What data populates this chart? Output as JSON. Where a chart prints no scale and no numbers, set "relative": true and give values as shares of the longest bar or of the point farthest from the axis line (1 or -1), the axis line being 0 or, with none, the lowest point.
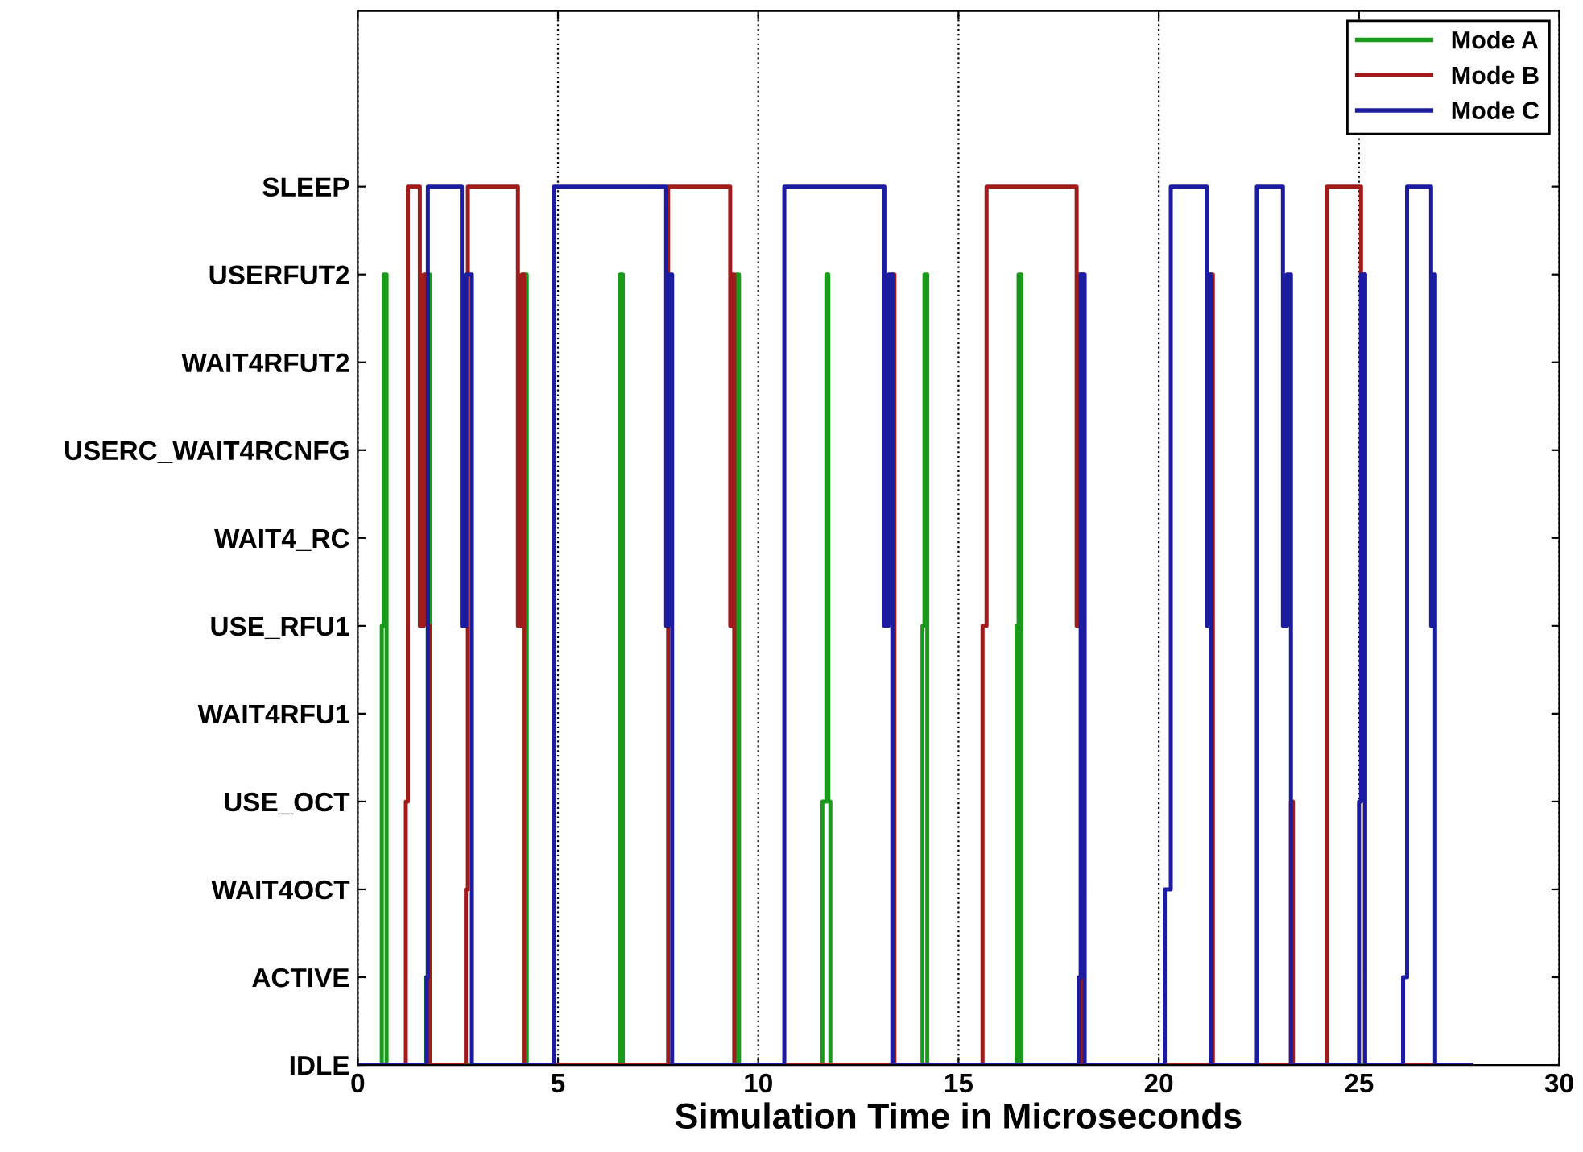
{
  "chart_data": {
    "type": "step",
    "relative": true,
    "xlabel": "Simulation Time in Microseconds",
    "xlim": [
      0,
      30
    ],
    "xticks": [
      0,
      5,
      10,
      15,
      20,
      25,
      30
    ],
    "y_categories": [
      "SLEEP",
      "USERFUT2",
      "WAIT4RFUT2",
      "USERC_WAIT4RCNFG",
      "WAIT4_RC",
      "USE_RFU1",
      "WAIT4RFU1",
      "USE_OCT",
      "WAIT4OCT",
      "ACTIVE",
      "IDLE"
    ],
    "grid": "x",
    "legend": "top right",
    "series": [
      {
        "name": "Mode A",
        "color": "#1a9a1a",
        "x": [
          0,
          0.6,
          0.65,
          0.72,
          1.7,
          1.75,
          1.8,
          4.15,
          4.22,
          6.55,
          6.62,
          9.45,
          9.52,
          11.6,
          11.7,
          11.75,
          11.8,
          14.1,
          14.15,
          14.22,
          16.45,
          16.5,
          16.57,
          27.8
        ],
        "values": [
          0,
          0.5,
          0.9,
          0,
          0.1,
          0.9,
          0,
          0.9,
          0,
          0.9,
          0,
          0.9,
          0,
          0.3,
          0.9,
          0.3,
          0,
          0.5,
          0.9,
          0,
          0.5,
          0.9,
          0,
          0
        ]
      },
      {
        "name": "Mode B",
        "color": "#a01c1c",
        "x": [
          0,
          1.2,
          1.25,
          1.55,
          1.65,
          1.75,
          1.8,
          2.7,
          2.75,
          4.0,
          4.1,
          4.15,
          7.75,
          9.3,
          9.35,
          9.4,
          13.35,
          13.4,
          15.6,
          15.7,
          17.95,
          18.0,
          18.1,
          21.3,
          21.35,
          23.3,
          23.35,
          24.2,
          25.05,
          25.1,
          25.15,
          27.8
        ],
        "values": [
          0,
          0.3,
          1,
          0.5,
          0.9,
          0.5,
          0,
          0.2,
          1,
          0.5,
          0.9,
          0,
          1,
          0.5,
          0.9,
          0,
          0.9,
          0,
          0.5,
          1,
          0.5,
          0.9,
          0,
          0.9,
          0,
          0.3,
          0,
          1,
          0.5,
          0.9,
          0,
          0
        ]
      },
      {
        "name": "Mode C",
        "color": "#1c1ca0",
        "x": [
          0,
          1.72,
          1.75,
          2.6,
          2.7,
          2.85,
          4.9,
          7.7,
          7.75,
          7.85,
          10.65,
          13.15,
          13.25,
          13.35,
          18.0,
          18.05,
          18.15,
          20.15,
          20.3,
          21.2,
          21.25,
          21.3,
          22.45,
          23.1,
          23.2,
          23.3,
          25.0,
          25.05,
          25.15,
          26.1,
          26.2,
          26.8,
          26.85,
          26.9,
          27.8
        ],
        "values": [
          0,
          0.1,
          1,
          0.5,
          0.9,
          0,
          1,
          0.5,
          0.9,
          0,
          1,
          0.5,
          0.9,
          0,
          0.1,
          0.9,
          0,
          0.2,
          1,
          0.5,
          0.9,
          0,
          1,
          0.5,
          0.9,
          0,
          0.3,
          0.9,
          0,
          0.1,
          1,
          0.5,
          0.9,
          0,
          0
        ]
      }
    ]
  }
}
